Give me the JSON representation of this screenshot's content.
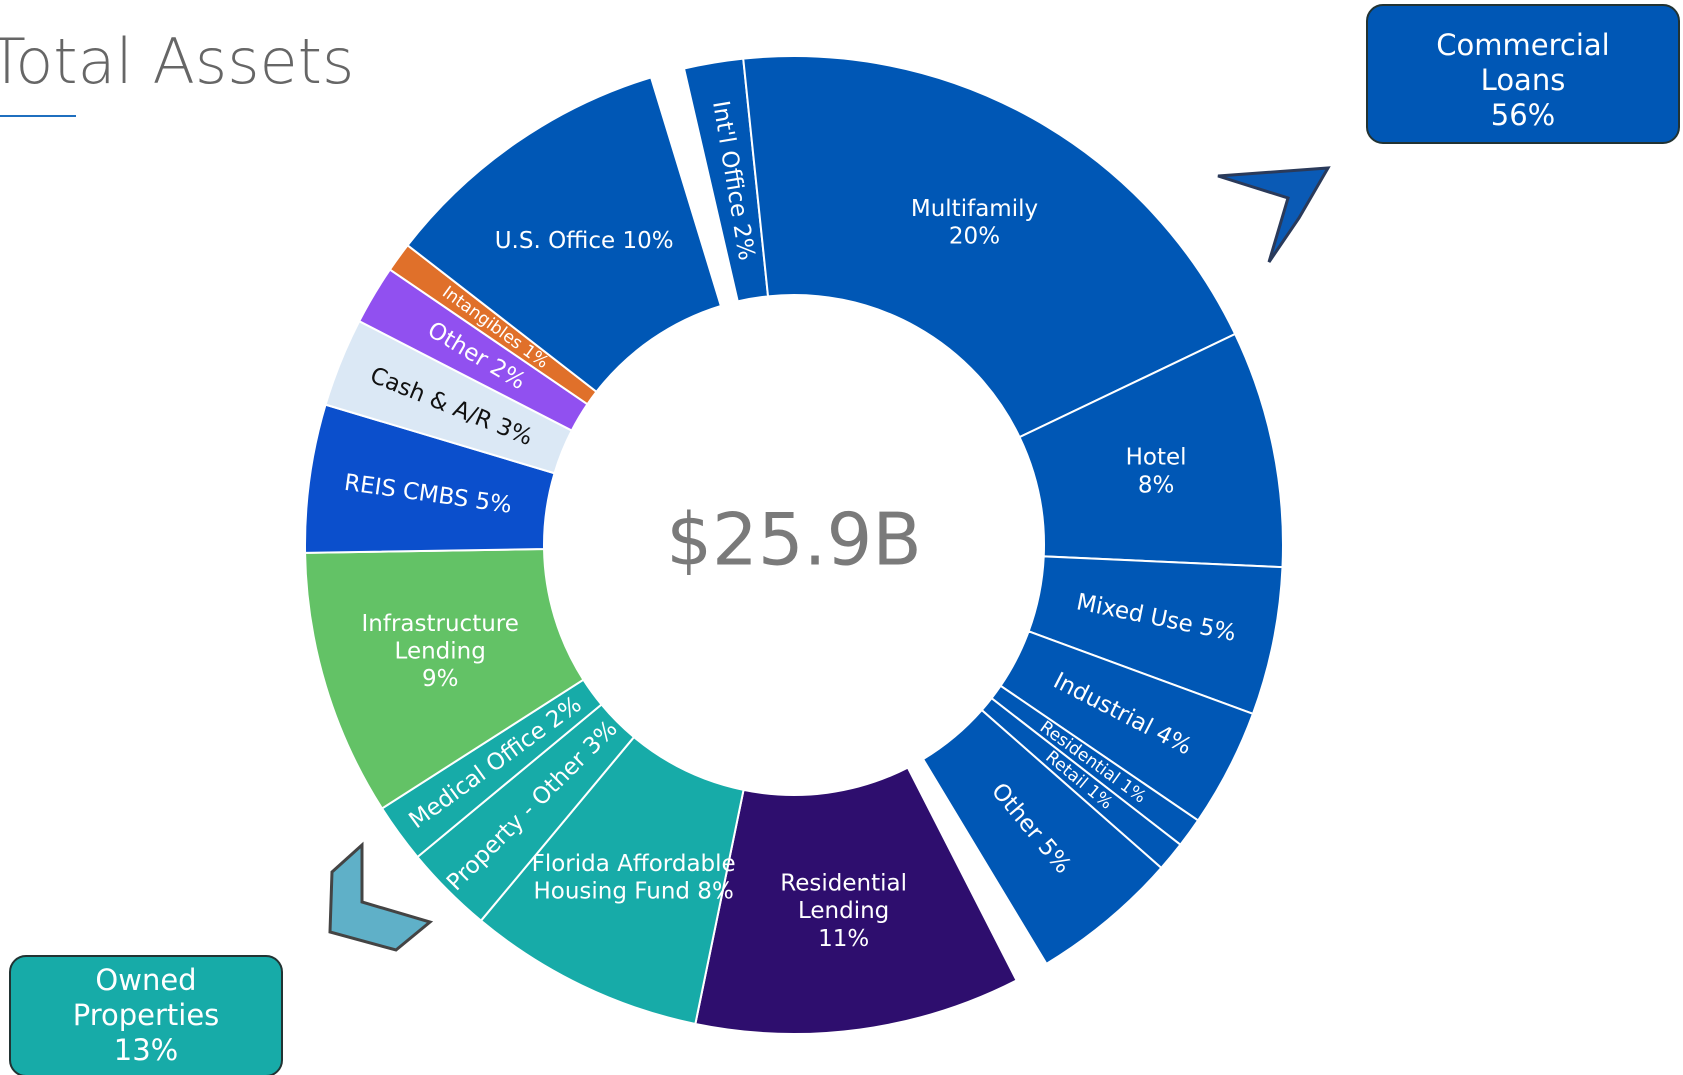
{
  "chart_data": {
    "type": "donut",
    "title": "Total Assets",
    "center_label": "$25.9B",
    "categories": [
      "Int'l Office",
      "Multifamily",
      "Hotel",
      "Mixed Use",
      "Industrial",
      "Residential",
      "Retail",
      "Other",
      "Residential Lending",
      "Florida Affordable Housing Fund",
      "Property - Other",
      "Medical Office",
      "Infrastructure Lending",
      "REIS CMBS",
      "Cash & A/R",
      "Other",
      "Intangibles",
      "U.S. Office"
    ],
    "values": [
      2,
      20,
      8,
      5,
      4,
      1,
      1,
      5,
      11,
      8,
      3,
      2,
      9,
      5,
      3,
      2,
      1,
      10
    ],
    "value_labels": [
      [
        "Int'l Office 2%"
      ],
      [
        "Multifamily",
        "20%"
      ],
      [
        "Hotel",
        "8%"
      ],
      [
        "Mixed Use 5%"
      ],
      [
        "Industrial 4%"
      ],
      [
        "Residential 1%"
      ],
      [
        "Retail 1%"
      ],
      [
        "Other 5%"
      ],
      [
        "Residential",
        "Lending",
        "11%"
      ],
      [
        "Florida Affordable",
        "Housing Fund 8%"
      ],
      [
        "Property - Other 3%"
      ],
      [
        "Medical Office 2%"
      ],
      [
        "Infrastructure",
        "Lending",
        "9%"
      ],
      [
        "REIS CMBS 5%"
      ],
      [
        "Cash & A/R 3%"
      ],
      [
        "Other 2%"
      ],
      [
        "Intangibles 1%"
      ],
      [
        "U.S. Office 10%"
      ]
    ],
    "colors": [
      "#0057b5",
      "#0057b5",
      "#0057b5",
      "#0057b5",
      "#0057b5",
      "#0057b5",
      "#0057b5",
      "#0057b5",
      "#2e0e6e",
      "#17aba8",
      "#17aba8",
      "#17aba8",
      "#63c266",
      "#0b4fcc",
      "#dbe8f5",
      "#9150f0",
      "#e0702a",
      "#0057b5"
    ],
    "callouts": [
      [
        "Commercial",
        "Loans",
        "56%"
      ],
      [
        "Owned",
        "Properties",
        "13%"
      ]
    ]
  }
}
